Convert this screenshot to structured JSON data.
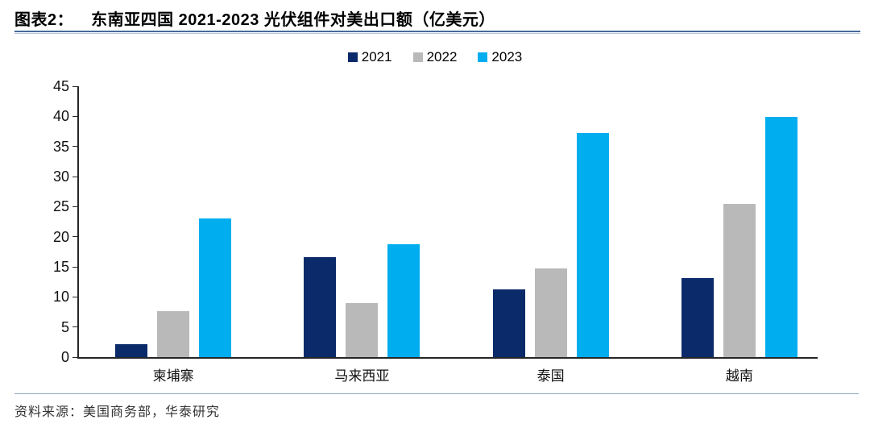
{
  "header": {
    "title_prefix": "图表2：",
    "title_text": "东南亚四国 2021-2023 光伏组件对美出口额（亿美元）"
  },
  "legend": [
    {
      "label": "2021",
      "color": "#0b2a6a"
    },
    {
      "label": "2022",
      "color": "#b9b9b9"
    },
    {
      "label": "2023",
      "color": "#00aeef"
    }
  ],
  "chart_data": {
    "type": "bar",
    "title": "东南亚四国 2021-2023 光伏组件对美出口额（亿美元）",
    "categories": [
      "柬埔寨",
      "马来西亚",
      "泰国",
      "越南"
    ],
    "series": [
      {
        "name": "2021",
        "color": "#0b2a6a",
        "values": [
          2.2,
          16.6,
          11.3,
          13.1
        ]
      },
      {
        "name": "2022",
        "color": "#b9b9b9",
        "values": [
          7.6,
          9.0,
          14.8,
          25.4
        ]
      },
      {
        "name": "2023",
        "color": "#00aeef",
        "values": [
          23.1,
          18.7,
          37.2,
          39.9
        ]
      }
    ],
    "ylim": [
      0,
      45
    ],
    "yticks": [
      0,
      5,
      10,
      15,
      20,
      25,
      30,
      35,
      40,
      45
    ],
    "grid": false,
    "legend_position": "top-center",
    "xlabel": "",
    "ylabel": ""
  },
  "footer": {
    "source_text": "资料来源：美国商务部，华泰研究"
  },
  "colors": {
    "axis": "#262626",
    "title_rule_dark": "#46699c",
    "title_rule_light": "#b4c9de",
    "footer_rule": "#8aa5c2"
  }
}
